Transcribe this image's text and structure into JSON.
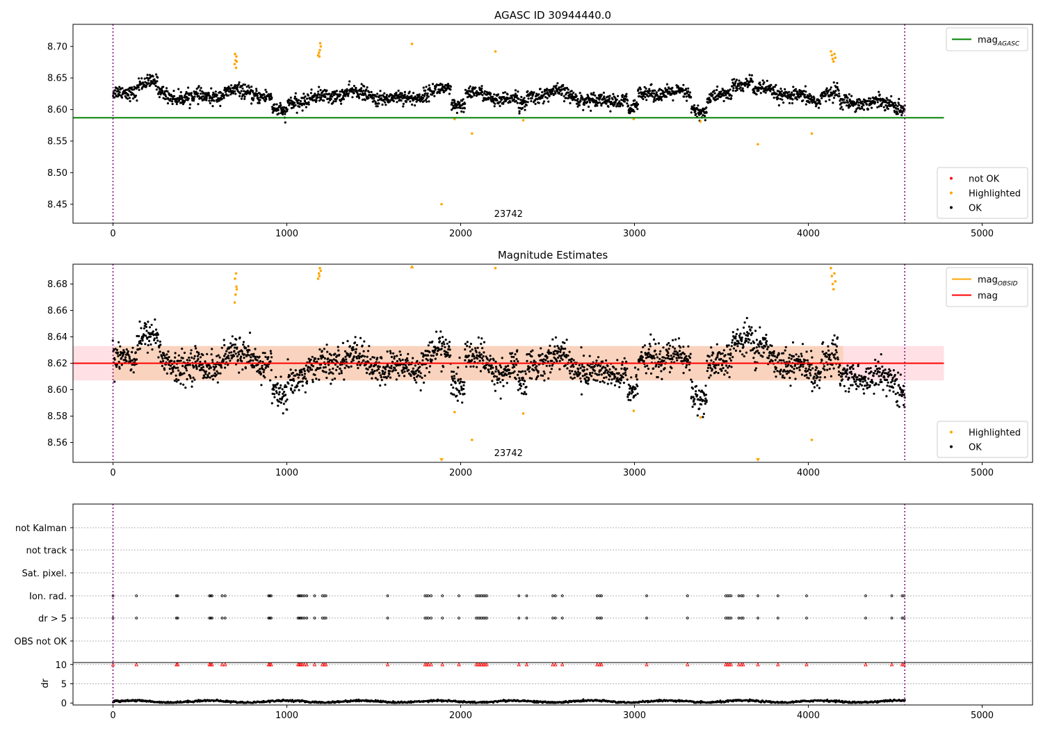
{
  "chart_data": [
    {
      "type": "scatter",
      "title": "AGASC ID 30944440.0",
      "xlim": [
        -230,
        5290
      ],
      "ylim": [
        8.42,
        8.735
      ],
      "xticks": [
        0,
        1000,
        2000,
        3000,
        4000,
        5000
      ],
      "yticks": [
        8.45,
        8.5,
        8.55,
        8.6,
        8.65,
        8.7
      ],
      "ytick_labels": [
        "8.45",
        "8.50",
        "8.55",
        "8.60",
        "8.65",
        "8.70"
      ],
      "obsid_annotation": {
        "text": "23742",
        "x": 2275,
        "y": 8.43
      },
      "vlines": [
        0,
        4555
      ],
      "reference_line": {
        "name": "mag",
        "subscript": "AGASC",
        "value": 8.587,
        "x": [
          -230,
          4780
        ],
        "color": "#008000"
      },
      "legend_upper": [
        {
          "label": "mag",
          "subscript": "AGASC",
          "color": "#008000",
          "marker": "line"
        }
      ],
      "legend_lower": [
        {
          "label": "not OK",
          "color": "#ff0000",
          "marker": "dot"
        },
        {
          "label": "Highlighted",
          "color": "#ffa500",
          "marker": "dot"
        },
        {
          "label": "OK",
          "color": "#000000",
          "marker": "dot"
        }
      ],
      "series": [
        {
          "name": "OK",
          "color": "#000000",
          "x_range": [
            0,
            4555
          ],
          "y_mean": 8.622,
          "y_spread": 0.012,
          "count": 2400
        },
        {
          "name": "Highlighted",
          "color": "#ffa500",
          "points": [
            [
              700,
              8.672
            ],
            [
              705,
              8.678
            ],
            [
              710,
              8.684
            ],
            [
              702,
              8.688
            ],
            [
              708,
              8.666
            ],
            [
              712,
              8.676
            ],
            [
              1180,
              8.686
            ],
            [
              1185,
              8.69
            ],
            [
              1190,
              8.694
            ],
            [
              1195,
              8.7
            ],
            [
              1192,
              8.705
            ],
            [
              1187,
              8.684
            ],
            [
              1720,
              8.704
            ],
            [
              2200,
              8.692
            ],
            [
              4130,
              8.692
            ],
            [
              4135,
              8.686
            ],
            [
              4140,
              8.68
            ],
            [
              4145,
              8.676
            ],
            [
              4150,
              8.688
            ],
            [
              4155,
              8.682
            ],
            [
              1890,
              8.45
            ],
            [
              2065,
              8.562
            ],
            [
              3710,
              8.545
            ],
            [
              4020,
              8.562
            ],
            [
              2360,
              8.583
            ],
            [
              1965,
              8.585
            ],
            [
              3380,
              8.581
            ],
            [
              2995,
              8.585
            ]
          ]
        }
      ]
    },
    {
      "type": "scatter",
      "title": "Magnitude Estimates",
      "xlim": [
        -230,
        5290
      ],
      "ylim": [
        8.545,
        8.695
      ],
      "xticks": [
        0,
        1000,
        2000,
        3000,
        4000,
        5000
      ],
      "yticks": [
        8.56,
        8.58,
        8.6,
        8.62,
        8.64,
        8.66,
        8.68
      ],
      "ytick_labels": [
        "8.56",
        "8.58",
        "8.60",
        "8.62",
        "8.64",
        "8.66",
        "8.68"
      ],
      "obsid_annotation": {
        "text": "23742",
        "x": 2275,
        "y": 8.548
      },
      "vlines": [
        0,
        4555
      ],
      "mag_line": {
        "name": "mag",
        "value": 8.62,
        "color": "#ff0000"
      },
      "band_total": {
        "low": 8.607,
        "high": 8.633,
        "x": [
          -230,
          4780
        ],
        "color": "#ffe0e4"
      },
      "band_obsid": {
        "low": 8.607,
        "high": 8.633,
        "x": [
          0,
          4200
        ],
        "color": "#f9d3bd"
      },
      "legend_upper": [
        {
          "label": "mag",
          "subscript": "OBSID",
          "color": "#ffa500",
          "marker": "line"
        },
        {
          "label": "mag",
          "subscript": "",
          "color": "#ff0000",
          "marker": "line"
        }
      ],
      "legend_lower": [
        {
          "label": "Highlighted",
          "color": "#ffa500",
          "marker": "dot"
        },
        {
          "label": "OK",
          "color": "#000000",
          "marker": "dot"
        }
      ],
      "series": [
        {
          "name": "OK",
          "color": "#000000",
          "x_range": [
            0,
            4555
          ],
          "y_mean": 8.62,
          "y_spread": 0.013,
          "count": 2400
        },
        {
          "name": "Highlighted",
          "color": "#ffa500",
          "points": [
            [
              700,
              8.666
            ],
            [
              705,
              8.672
            ],
            [
              710,
              8.678
            ],
            [
              702,
              8.684
            ],
            [
              708,
              8.688
            ],
            [
              712,
              8.676
            ],
            [
              1180,
              8.684
            ],
            [
              1185,
              8.688
            ],
            [
              1190,
              8.692
            ],
            [
              1195,
              8.69
            ],
            [
              1187,
              8.686
            ],
            [
              2200,
              8.692
            ],
            [
              4130,
              8.692
            ],
            [
              4135,
              8.686
            ],
            [
              4140,
              8.68
            ],
            [
              4145,
              8.676
            ],
            [
              4150,
              8.688
            ],
            [
              4155,
              8.682
            ],
            [
              2065,
              8.562
            ],
            [
              4020,
              8.562
            ],
            [
              2360,
              8.582
            ],
            [
              1965,
              8.583
            ],
            [
              3380,
              8.579
            ],
            [
              2995,
              8.584
            ]
          ]
        },
        {
          "name": "Highlighted-offscale",
          "color": "#ffa500",
          "points": [
            [
              1720,
              8.695
            ],
            [
              1890,
              8.545
            ],
            [
              3710,
              8.545
            ]
          ]
        }
      ]
    },
    {
      "type": "scatter",
      "title": "",
      "xlim": [
        -230,
        5290
      ],
      "xticks": [
        0,
        1000,
        2000,
        3000,
        4000,
        5000
      ],
      "vlines": [
        0,
        4555
      ],
      "flag_rows": [
        "not Kalman",
        "not track",
        "Sat. pixel.",
        "Ion. rad.",
        "dr > 5",
        "OBS not OK"
      ],
      "flagged_times": [
        0,
        135,
        365,
        372,
        555,
        562,
        570,
        628,
        645,
        895,
        902,
        910,
        1065,
        1072,
        1080,
        1088,
        1100,
        1115,
        1160,
        1205,
        1215,
        1225,
        1580,
        1795,
        1805,
        1815,
        1830,
        1895,
        1990,
        2090,
        2100,
        2110,
        2120,
        2130,
        2140,
        2150,
        2335,
        2380,
        2530,
        2545,
        2585,
        2785,
        2800,
        2810,
        3070,
        3305,
        3525,
        3535,
        3545,
        3555,
        3600,
        3615,
        3625,
        3710,
        3825,
        3990,
        4330,
        4480,
        4540,
        4550
      ],
      "dr_panel": {
        "ylabel": "dr",
        "yticks": [
          0,
          5,
          10
        ],
        "ytick_labels": [
          "0",
          "5",
          "10"
        ],
        "ylim": [
          -0.5,
          10.5
        ],
        "baseline_mean": 0.4
      }
    }
  ]
}
